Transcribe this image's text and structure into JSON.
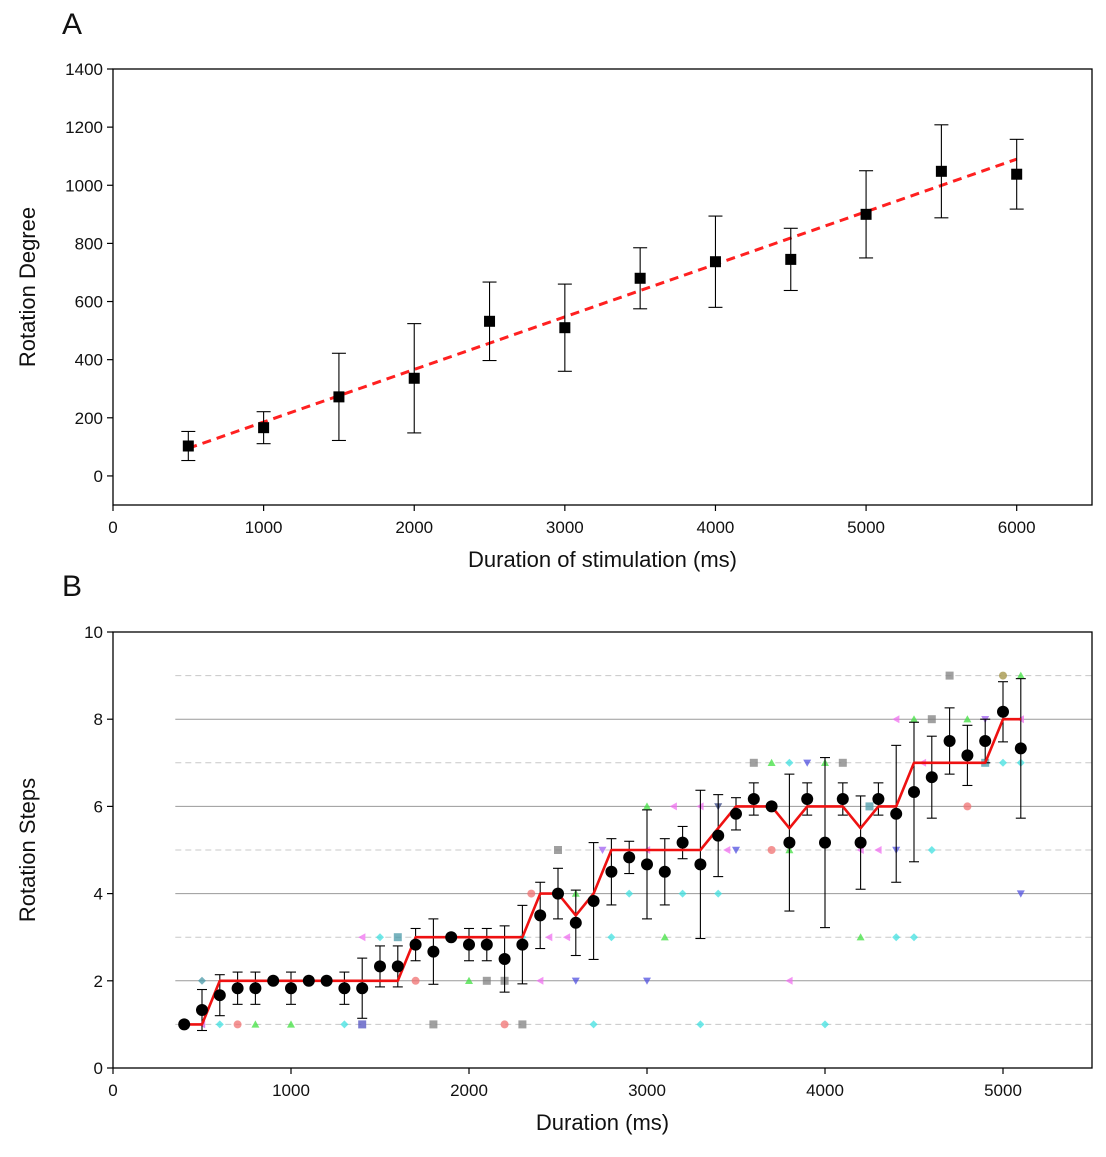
{
  "chart_data": [
    {
      "panel": "A",
      "type": "scatter",
      "xlabel": "Duration of stimulation (ms)",
      "ylabel": "Rotation Degree",
      "xlim": [
        0,
        6500
      ],
      "ylim": [
        -100,
        1400
      ],
      "xticks": [
        0,
        1000,
        2000,
        3000,
        4000,
        5000,
        6000
      ],
      "yticks": [
        0,
        200,
        400,
        600,
        800,
        1000,
        1200,
        1400
      ],
      "grid": false,
      "series": [
        {
          "marker": "square",
          "color": "#000000",
          "x": [
            500,
            1000,
            1500,
            2000,
            2500,
            3000,
            3500,
            4000,
            4500,
            5000,
            5500,
            6000
          ],
          "y": [
            103,
            166,
            272,
            336,
            532,
            510,
            680,
            737,
            745,
            900,
            1048,
            1038
          ],
          "err_low": [
            50,
            55,
            150,
            188,
            135,
            150,
            105,
            157,
            107,
            150,
            160,
            120
          ],
          "err_high": [
            50,
            55,
            150,
            188,
            135,
            150,
            105,
            157,
            107,
            150,
            160,
            120
          ]
        }
      ],
      "fit": {
        "style": "dashed",
        "color": "#ff2020",
        "x": [
          500,
          6000
        ],
        "y": [
          95,
          1090
        ]
      }
    },
    {
      "panel": "B",
      "type": "scatter",
      "xlabel": "Duration (ms)",
      "ylabel": "Rotation Steps",
      "xlim": [
        0,
        5500
      ],
      "ylim": [
        0,
        10
      ],
      "xticks": [
        0,
        1000,
        2000,
        3000,
        4000,
        5000
      ],
      "yticks": [
        0,
        2,
        4,
        6,
        8,
        10
      ],
      "grid": true,
      "major_grid_y": [
        2,
        4,
        6,
        8
      ],
      "minor_grid_y": [
        1,
        3,
        5,
        7,
        9
      ],
      "mean_series": {
        "marker": "circle",
        "color": "#000000",
        "x": [
          400,
          500,
          600,
          700,
          800,
          900,
          1000,
          1100,
          1200,
          1300,
          1400,
          1500,
          1600,
          1700,
          1800,
          1900,
          2000,
          2100,
          2200,
          2300,
          2400,
          2500,
          2600,
          2700,
          2800,
          2900,
          3000,
          3100,
          3200,
          3300,
          3400,
          3500,
          3600,
          3700,
          3800,
          3900,
          4000,
          4100,
          4200,
          4300,
          4400,
          4500,
          4600,
          4700,
          4800,
          4900,
          5000,
          5100
        ],
        "y": [
          1.0,
          1.33,
          1.67,
          1.83,
          1.83,
          2.0,
          1.83,
          2.0,
          2.0,
          1.83,
          1.83,
          2.33,
          2.33,
          2.83,
          2.67,
          3.0,
          2.83,
          2.83,
          2.5,
          2.83,
          3.5,
          4.0,
          3.33,
          3.83,
          4.5,
          4.83,
          4.67,
          4.5,
          5.17,
          4.67,
          5.33,
          5.83,
          6.17,
          6.0,
          5.17,
          6.17,
          5.17,
          6.17,
          5.17,
          6.17,
          5.83,
          6.33,
          6.67,
          7.5,
          7.17,
          7.5,
          8.17,
          7.33
        ],
        "err": [
          0.0,
          0.47,
          0.47,
          0.37,
          0.37,
          0.0,
          0.37,
          0.0,
          0.0,
          0.37,
          0.69,
          0.47,
          0.47,
          0.37,
          0.75,
          0.0,
          0.37,
          0.37,
          0.76,
          0.9,
          0.76,
          0.58,
          0.75,
          1.34,
          0.76,
          0.37,
          1.25,
          0.76,
          0.37,
          1.7,
          0.94,
          0.37,
          0.37,
          0.0,
          1.57,
          0.37,
          1.95,
          0.37,
          1.07,
          0.37,
          1.57,
          1.6,
          0.94,
          0.76,
          0.69,
          0.5,
          0.69,
          1.6
        ]
      },
      "median_line": {
        "color": "#ee1111",
        "x": [
          400,
          500,
          600,
          700,
          800,
          900,
          1000,
          1100,
          1200,
          1300,
          1400,
          1500,
          1600,
          1700,
          1800,
          1900,
          2000,
          2100,
          2200,
          2300,
          2400,
          2500,
          2600,
          2700,
          2800,
          2900,
          3000,
          3100,
          3200,
          3300,
          3400,
          3500,
          3600,
          3700,
          3800,
          3900,
          4000,
          4100,
          4200,
          4300,
          4400,
          4500,
          4600,
          4700,
          4800,
          4900,
          5000,
          5100
        ],
        "y": [
          1,
          1,
          2,
          2,
          2,
          2,
          2,
          2,
          2,
          2,
          2,
          2,
          2,
          3,
          3,
          3,
          3,
          3,
          3,
          3,
          4,
          4,
          3.5,
          4,
          5,
          5,
          5,
          5,
          5,
          5,
          5.5,
          6,
          6,
          6,
          5.5,
          6,
          6,
          6,
          5.5,
          6,
          6,
          7,
          7,
          7,
          7,
          7,
          8,
          8
        ]
      },
      "individual_points": [
        {
          "x": 500,
          "y": 2,
          "color": "#4a9aa8",
          "marker": "diamond"
        },
        {
          "x": 500,
          "y": 1,
          "color": "#d060e0",
          "marker": "tri-left"
        },
        {
          "x": 600,
          "y": 1,
          "color": "#40e0e0",
          "marker": "diamond"
        },
        {
          "x": 700,
          "y": 1,
          "color": "#f07070",
          "marker": "circle"
        },
        {
          "x": 800,
          "y": 1,
          "color": "#40e040",
          "marker": "tri-up"
        },
        {
          "x": 1000,
          "y": 1,
          "color": "#40e040",
          "marker": "tri-up"
        },
        {
          "x": 1300,
          "y": 1,
          "color": "#40e0e0",
          "marker": "diamond"
        },
        {
          "x": 1400,
          "y": 1,
          "color": "#5050c0",
          "marker": "square"
        },
        {
          "x": 1400,
          "y": 3,
          "color": "#f070f0",
          "marker": "tri-left"
        },
        {
          "x": 1500,
          "y": 3,
          "color": "#40e0e0",
          "marker": "diamond"
        },
        {
          "x": 1600,
          "y": 3,
          "color": "#4a9aa8",
          "marker": "square"
        },
        {
          "x": 1700,
          "y": 2,
          "color": "#f07070",
          "marker": "circle"
        },
        {
          "x": 1800,
          "y": 1,
          "color": "#808080",
          "marker": "square"
        },
        {
          "x": 2000,
          "y": 2,
          "color": "#40e040",
          "marker": "tri-up"
        },
        {
          "x": 2100,
          "y": 2,
          "color": "#808080",
          "marker": "square"
        },
        {
          "x": 2200,
          "y": 1,
          "color": "#f07070",
          "marker": "circle"
        },
        {
          "x": 2200,
          "y": 2,
          "color": "#808080",
          "marker": "square"
        },
        {
          "x": 2300,
          "y": 1,
          "color": "#808080",
          "marker": "square"
        },
        {
          "x": 2300,
          "y": 3,
          "color": "#40e0e0",
          "marker": "diamond"
        },
        {
          "x": 2350,
          "y": 4,
          "color": "#f07070",
          "marker": "circle"
        },
        {
          "x": 2400,
          "y": 2,
          "color": "#f070f0",
          "marker": "tri-left"
        },
        {
          "x": 2450,
          "y": 3,
          "color": "#f070f0",
          "marker": "tri-left"
        },
        {
          "x": 2500,
          "y": 5,
          "color": "#808080",
          "marker": "square"
        },
        {
          "x": 2550,
          "y": 3,
          "color": "#f070f0",
          "marker": "tri-left"
        },
        {
          "x": 2600,
          "y": 2,
          "color": "#5050e0",
          "marker": "tri-down"
        },
        {
          "x": 2600,
          "y": 4,
          "color": "#40e040",
          "marker": "tri-up"
        },
        {
          "x": 2700,
          "y": 1,
          "color": "#40e0e0",
          "marker": "diamond"
        },
        {
          "x": 2750,
          "y": 5,
          "color": "#a060f0",
          "marker": "tri-down"
        },
        {
          "x": 2800,
          "y": 3,
          "color": "#40e0e0",
          "marker": "diamond"
        },
        {
          "x": 2900,
          "y": 4,
          "color": "#40e0e0",
          "marker": "diamond"
        },
        {
          "x": 3000,
          "y": 2,
          "color": "#5050e0",
          "marker": "tri-down"
        },
        {
          "x": 3000,
          "y": 6,
          "color": "#40e040",
          "marker": "tri-up"
        },
        {
          "x": 3000,
          "y": 5,
          "color": "#f070f0",
          "marker": "tri-left"
        },
        {
          "x": 3100,
          "y": 3,
          "color": "#40e040",
          "marker": "tri-up"
        },
        {
          "x": 3150,
          "y": 6,
          "color": "#f070f0",
          "marker": "tri-left"
        },
        {
          "x": 3200,
          "y": 4,
          "color": "#40e0e0",
          "marker": "diamond"
        },
        {
          "x": 3300,
          "y": 1,
          "color": "#40e0e0",
          "marker": "diamond"
        },
        {
          "x": 3300,
          "y": 6,
          "color": "#f070f0",
          "marker": "tri-left"
        },
        {
          "x": 3400,
          "y": 4,
          "color": "#40e0e0",
          "marker": "diamond"
        },
        {
          "x": 3400,
          "y": 6,
          "color": "#304080",
          "marker": "tri-down"
        },
        {
          "x": 3450,
          "y": 5,
          "color": "#f070f0",
          "marker": "tri-left"
        },
        {
          "x": 3500,
          "y": 5,
          "color": "#5050e0",
          "marker": "tri-down"
        },
        {
          "x": 3600,
          "y": 7,
          "color": "#808080",
          "marker": "square"
        },
        {
          "x": 3700,
          "y": 5,
          "color": "#f07070",
          "marker": "circle"
        },
        {
          "x": 3700,
          "y": 7,
          "color": "#40e040",
          "marker": "tri-up"
        },
        {
          "x": 3800,
          "y": 2,
          "color": "#f070f0",
          "marker": "tri-left"
        },
        {
          "x": 3800,
          "y": 7,
          "color": "#40e0e0",
          "marker": "diamond"
        },
        {
          "x": 3800,
          "y": 5,
          "color": "#40e040",
          "marker": "tri-up"
        },
        {
          "x": 3900,
          "y": 7,
          "color": "#5050e0",
          "marker": "tri-down"
        },
        {
          "x": 4000,
          "y": 1,
          "color": "#40e0e0",
          "marker": "diamond"
        },
        {
          "x": 4000,
          "y": 7,
          "color": "#40e040",
          "marker": "tri-up"
        },
        {
          "x": 4100,
          "y": 7,
          "color": "#808080",
          "marker": "square"
        },
        {
          "x": 4200,
          "y": 3,
          "color": "#40e040",
          "marker": "tri-up"
        },
        {
          "x": 4200,
          "y": 5,
          "color": "#f070f0",
          "marker": "tri-left"
        },
        {
          "x": 4250,
          "y": 6,
          "color": "#4a9aa8",
          "marker": "square"
        },
        {
          "x": 4300,
          "y": 5,
          "color": "#f070f0",
          "marker": "tri-left"
        },
        {
          "x": 4400,
          "y": 3,
          "color": "#40e0e0",
          "marker": "diamond"
        },
        {
          "x": 4400,
          "y": 5,
          "color": "#5050e0",
          "marker": "tri-down"
        },
        {
          "x": 4400,
          "y": 8,
          "color": "#f070f0",
          "marker": "tri-left"
        },
        {
          "x": 4500,
          "y": 3,
          "color": "#40e0e0",
          "marker": "diamond"
        },
        {
          "x": 4500,
          "y": 8,
          "color": "#40e040",
          "marker": "tri-up"
        },
        {
          "x": 4550,
          "y": 7,
          "color": "#f070f0",
          "marker": "tri-left"
        },
        {
          "x": 4600,
          "y": 5,
          "color": "#40e0e0",
          "marker": "diamond"
        },
        {
          "x": 4600,
          "y": 8,
          "color": "#808080",
          "marker": "square"
        },
        {
          "x": 4700,
          "y": 9,
          "color": "#808080",
          "marker": "square"
        },
        {
          "x": 4800,
          "y": 6,
          "color": "#f07070",
          "marker": "circle"
        },
        {
          "x": 4800,
          "y": 8,
          "color": "#40e040",
          "marker": "tri-up"
        },
        {
          "x": 4900,
          "y": 7,
          "color": "#4a9aa8",
          "marker": "square"
        },
        {
          "x": 4900,
          "y": 8,
          "color": "#a060f0",
          "marker": "tri-down"
        },
        {
          "x": 5000,
          "y": 9,
          "color": "#a09040",
          "marker": "circle"
        },
        {
          "x": 5000,
          "y": 7,
          "color": "#40e0e0",
          "marker": "diamond"
        },
        {
          "x": 5100,
          "y": 9,
          "color": "#40e040",
          "marker": "tri-up"
        },
        {
          "x": 5100,
          "y": 7,
          "color": "#40e0e0",
          "marker": "diamond"
        },
        {
          "x": 5100,
          "y": 4,
          "color": "#5050e0",
          "marker": "tri-down"
        },
        {
          "x": 5100,
          "y": 8,
          "color": "#f070f0",
          "marker": "tri-left"
        }
      ]
    }
  ]
}
